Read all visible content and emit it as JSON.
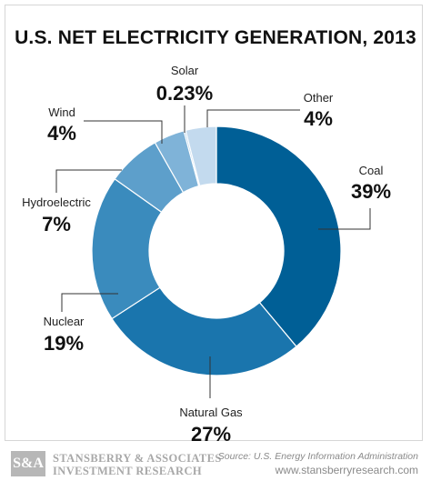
{
  "chart_data": {
    "type": "pie",
    "title": "U.S. NET ELECTRICITY GENERATION, 2013",
    "donut": true,
    "slices": [
      {
        "name": "Coal",
        "value": 39,
        "label": "39%",
        "color": "#005f96"
      },
      {
        "name": "Natural Gas",
        "value": 27,
        "label": "27%",
        "color": "#1a75ad"
      },
      {
        "name": "Nuclear",
        "value": 19,
        "label": "19%",
        "color": "#3a8bbd"
      },
      {
        "name": "Hydroelectric",
        "value": 7,
        "label": "7%",
        "color": "#5d9fcb"
      },
      {
        "name": "Wind",
        "value": 4,
        "label": "4%",
        "color": "#7fb3d8"
      },
      {
        "name": "Solar",
        "value": 0.23,
        "label": "0.23%",
        "color": "#a3c8e6"
      },
      {
        "name": "Other",
        "value": 4,
        "label": "4%",
        "color": "#c3daee"
      }
    ]
  },
  "footer": {
    "logo": "S&A",
    "brand_line1": "STANSBERRY & ASSOCIATES",
    "brand_line2": "INVESTMENT RESEARCH",
    "source": "Source: U.S. Energy Information Administration",
    "website": "www.stansberryresearch.com"
  }
}
